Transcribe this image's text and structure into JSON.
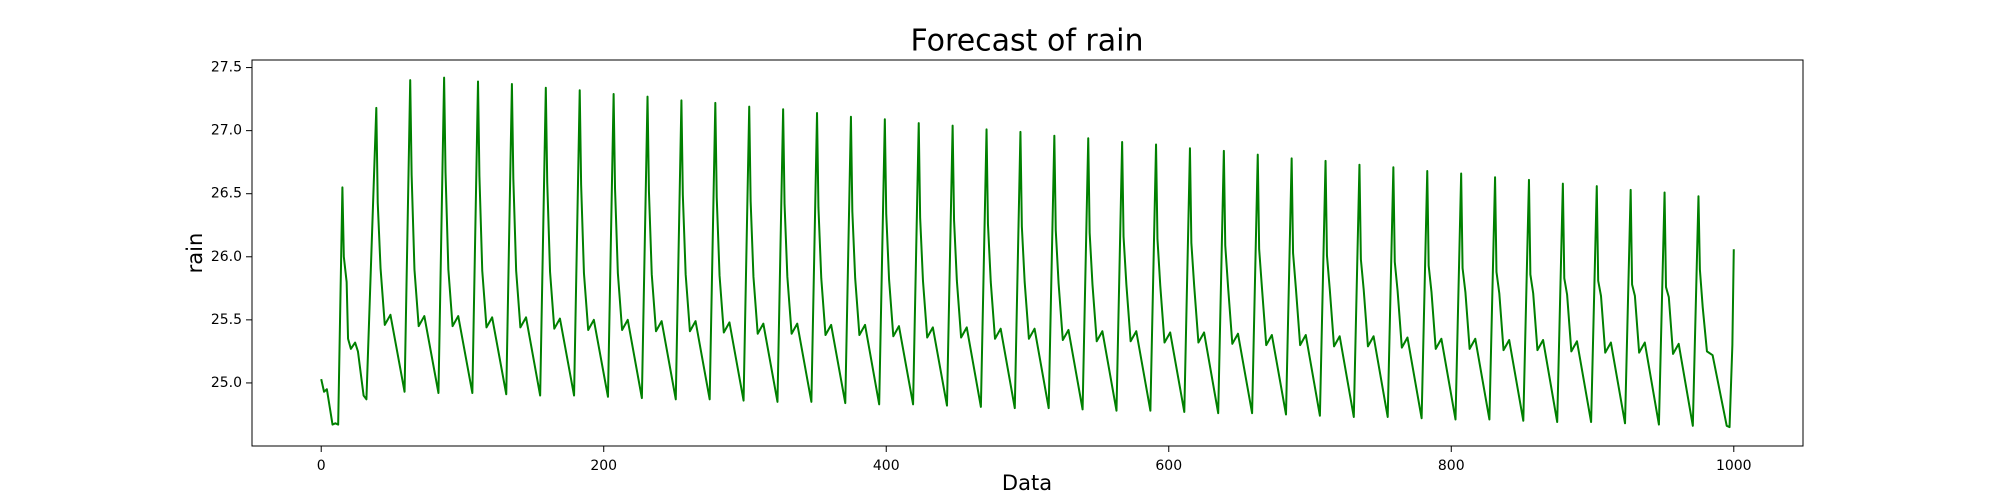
{
  "chart_data": {
    "type": "line",
    "title": "Forecast of rain",
    "xlabel": "Data",
    "ylabel": "rain",
    "xlim": [
      -49,
      1049
    ],
    "ylim": [
      24.5,
      27.56
    ],
    "xticks": [
      0,
      200,
      400,
      600,
      800,
      1000
    ],
    "yticks": [
      {
        "value": 25,
        "label": "25.0"
      },
      25.5,
      {
        "value": 26,
        "label": "26.0"
      },
      26.5,
      {
        "value": 27,
        "label": "27.0"
      },
      27.5
    ],
    "grid": false,
    "x": [
      0,
      2,
      4,
      8,
      10,
      12,
      15,
      16,
      18,
      19,
      21,
      24,
      26,
      30,
      32,
      39,
      40,
      42,
      45,
      49,
      59,
      63,
      64,
      66,
      69,
      73,
      83,
      87,
      88,
      90,
      93,
      97,
      107,
      111,
      112,
      114,
      117,
      121,
      131,
      135,
      136,
      138,
      141,
      145,
      155,
      159,
      160,
      162,
      165,
      169,
      179,
      183,
      184,
      186,
      189,
      193,
      203,
      207,
      208,
      210,
      213,
      217,
      227,
      231,
      232,
      234,
      237,
      241,
      251,
      255,
      256,
      258,
      261,
      265,
      275,
      279,
      280,
      282,
      285,
      289,
      299,
      303,
      304,
      306,
      309,
      313,
      323,
      327,
      328,
      330,
      333,
      337,
      347,
      351,
      352,
      354,
      357,
      361,
      371,
      375,
      376,
      378,
      381,
      385,
      395,
      399,
      400,
      402,
      405,
      409,
      419,
      423,
      424,
      426,
      429,
      433,
      443,
      447,
      448,
      450,
      453,
      457,
      467,
      471,
      472,
      474,
      477,
      481,
      491,
      495,
      496,
      498,
      501,
      505,
      515,
      519,
      520,
      522,
      525,
      529,
      539,
      543,
      544,
      546,
      549,
      553,
      563,
      567,
      568,
      570,
      573,
      577,
      587,
      591,
      592,
      594,
      597,
      601,
      611,
      615,
      616,
      618,
      621,
      625,
      635,
      639,
      640,
      642,
      645,
      649,
      659,
      663,
      664,
      666,
      669,
      673,
      683,
      687,
      688,
      690,
      693,
      697,
      707,
      711,
      712,
      714,
      717,
      721,
      731,
      735,
      736,
      738,
      741,
      745,
      755,
      759,
      760,
      762,
      765,
      769,
      779,
      783,
      784,
      786,
      789,
      793,
      803,
      807,
      808,
      810,
      813,
      817,
      827,
      831,
      832,
      834,
      837,
      841,
      851,
      855,
      856,
      858,
      861,
      865,
      875,
      879,
      880,
      882,
      885,
      889,
      899,
      903,
      904,
      906,
      909,
      913,
      923,
      927,
      928,
      930,
      933,
      937,
      947,
      951,
      952,
      954,
      957,
      961,
      971,
      975,
      976,
      978,
      981,
      985,
      995,
      997,
      999,
      1000
    ],
    "series": [
      {
        "name": "rain",
        "color": "#008000",
        "values": [
          25.03,
          24.93,
          24.95,
          24.67,
          24.68,
          24.67,
          26.55,
          26.0,
          25.8,
          25.35,
          25.27,
          25.32,
          25.25,
          24.9,
          24.87,
          27.18,
          26.43,
          25.91,
          25.46,
          25.54,
          24.93,
          27.4,
          26.65,
          25.9,
          25.45,
          25.53,
          24.92,
          27.42,
          26.67,
          25.9,
          25.45,
          25.53,
          24.92,
          27.39,
          26.64,
          25.89,
          25.44,
          25.52,
          24.91,
          27.37,
          26.62,
          25.89,
          25.44,
          25.52,
          24.9,
          27.34,
          26.59,
          25.88,
          25.43,
          25.51,
          24.9,
          27.32,
          26.57,
          25.87,
          25.42,
          25.5,
          24.89,
          27.29,
          26.54,
          25.87,
          25.42,
          25.5,
          24.88,
          27.27,
          26.52,
          25.86,
          25.41,
          25.49,
          24.87,
          27.24,
          26.49,
          25.86,
          25.41,
          25.49,
          24.87,
          27.22,
          26.47,
          25.85,
          25.4,
          25.48,
          24.86,
          27.19,
          26.44,
          25.84,
          25.39,
          25.47,
          24.85,
          27.17,
          26.42,
          25.84,
          25.39,
          25.47,
          24.85,
          27.14,
          26.39,
          25.83,
          25.38,
          25.46,
          24.84,
          27.11,
          26.36,
          25.83,
          25.38,
          25.46,
          24.83,
          27.09,
          26.34,
          25.82,
          25.37,
          25.45,
          24.83,
          27.06,
          26.31,
          25.81,
          25.36,
          25.44,
          24.82,
          27.04,
          26.29,
          25.81,
          25.36,
          25.44,
          24.81,
          27.01,
          26.26,
          25.8,
          25.35,
          25.43,
          24.8,
          26.99,
          26.24,
          25.8,
          25.35,
          25.43,
          24.8,
          26.96,
          26.21,
          25.79,
          25.34,
          25.42,
          24.79,
          26.94,
          26.19,
          25.78,
          25.33,
          25.41,
          24.78,
          26.91,
          26.16,
          25.78,
          25.33,
          25.41,
          24.78,
          26.89,
          26.14,
          25.77,
          25.32,
          25.4,
          24.77,
          26.86,
          26.11,
          25.77,
          25.32,
          25.4,
          24.76,
          26.84,
          26.09,
          25.76,
          25.31,
          25.39,
          24.76,
          26.81,
          26.06,
          25.75,
          25.3,
          25.38,
          24.75,
          26.78,
          26.03,
          25.75,
          25.3,
          25.38,
          24.74,
          26.76,
          26.01,
          25.74,
          25.29,
          25.37,
          24.73,
          26.73,
          25.98,
          25.74,
          25.29,
          25.37,
          24.73,
          26.71,
          25.96,
          25.73,
          25.28,
          25.36,
          24.72,
          26.68,
          25.93,
          25.72,
          25.27,
          25.35,
          24.71,
          26.66,
          25.91,
          25.72,
          25.27,
          25.35,
          24.71,
          26.63,
          25.88,
          25.71,
          25.26,
          25.34,
          24.7,
          26.61,
          25.86,
          25.71,
          25.26,
          25.34,
          24.69,
          26.58,
          25.83,
          25.7,
          25.25,
          25.33,
          24.69,
          26.56,
          25.81,
          25.69,
          25.24,
          25.32,
          24.68,
          26.53,
          25.78,
          25.69,
          25.24,
          25.32,
          24.67,
          26.51,
          25.76,
          25.68,
          25.23,
          25.31,
          24.66,
          26.48,
          25.9,
          25.6,
          25.25,
          25.22,
          24.66,
          24.65,
          25.3,
          26.06
        ]
      }
    ]
  }
}
